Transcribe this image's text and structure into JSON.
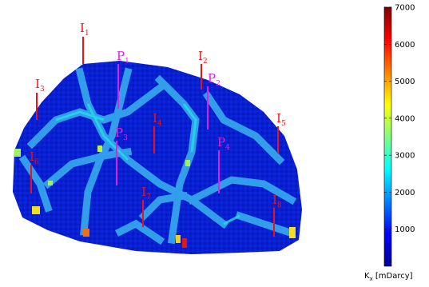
{
  "colorbar": {
    "title_main": "K",
    "title_sub": "x",
    "title_unit": " [mDarcy]",
    "min": 0,
    "max": 7000,
    "ticks": [
      {
        "value": 7000,
        "label": "7000"
      },
      {
        "value": 6000,
        "label": "6000"
      },
      {
        "value": 5000,
        "label": "5000"
      },
      {
        "value": 4000,
        "label": "4000"
      },
      {
        "value": 3000,
        "label": "3000"
      },
      {
        "value": 2000,
        "label": "2000"
      },
      {
        "value": 1000,
        "label": "1000"
      }
    ]
  },
  "wells": {
    "injectors": [
      {
        "letter": "I",
        "sub": "1"
      },
      {
        "letter": "I",
        "sub": "2"
      },
      {
        "letter": "I",
        "sub": "3"
      },
      {
        "letter": "I",
        "sub": "4"
      },
      {
        "letter": "I",
        "sub": "5"
      },
      {
        "letter": "I",
        "sub": "6"
      },
      {
        "letter": "I",
        "sub": "7"
      },
      {
        "letter": "I",
        "sub": "8"
      }
    ],
    "producers": [
      {
        "letter": "P",
        "sub": "1"
      },
      {
        "letter": "P",
        "sub": "2"
      },
      {
        "letter": "P",
        "sub": "3"
      },
      {
        "letter": "P",
        "sub": "4"
      }
    ],
    "injector_color": "#e8141c",
    "producer_color": "#e020e0"
  },
  "colors": {
    "background_field": "#0a1fd0",
    "channel": "#38b8f0",
    "high": "#f0e020"
  }
}
